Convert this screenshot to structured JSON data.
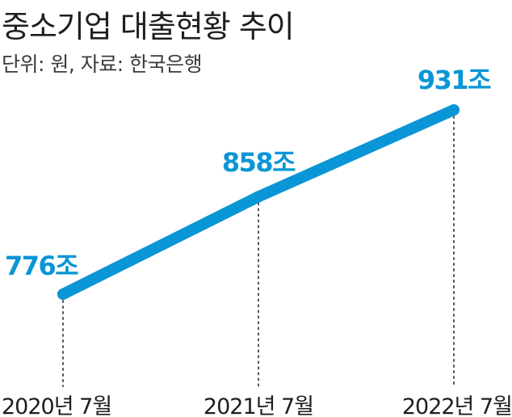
{
  "header": {
    "title": "중소기업 대출현황 추이",
    "subtitle": "단위: 원, 자료: 한국은행"
  },
  "colors": {
    "line": "#0a96d6",
    "value_label": "#0a96d6",
    "guide": "#555555",
    "tick_label": "#1e1e1e"
  },
  "chart_data": {
    "type": "line",
    "title": "중소기업 대출현황 추이",
    "subtitle": "단위: 원, 자료: 한국은행",
    "categories": [
      "2020년 7월",
      "2021년 7월",
      "2022년 7월"
    ],
    "values": [
      776,
      858,
      931
    ],
    "value_labels": [
      "776조",
      "858조",
      "931조"
    ],
    "unit": "조",
    "xlabel": "",
    "ylabel": "",
    "ylim": [
      700,
      960
    ],
    "grid": false,
    "legend": "none"
  }
}
